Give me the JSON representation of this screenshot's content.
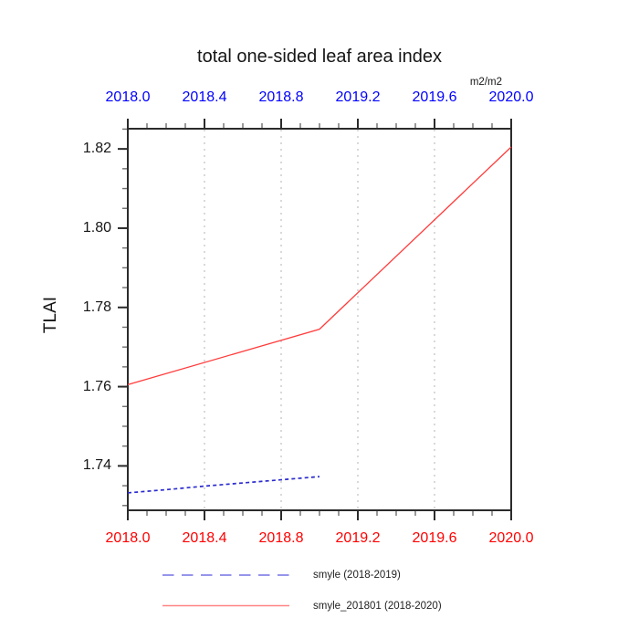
{
  "colors": {
    "top_axis_labels": "#0000ff",
    "bottom_axis_labels": "#ff0000",
    "frame": "#2b2b2b",
    "major_tick": "#2b2b2b",
    "minor_tick": "#6e6e6e",
    "gridline": "#d9d9d9",
    "title_text": "#161616"
  },
  "chart_data": {
    "type": "line",
    "title": "total one-sided leaf area index",
    "ylabel": "TLAI",
    "xlabel": "",
    "units": "m2/m2",
    "grid": "vertical-dotted",
    "legend_position": "below",
    "xlim": [
      2018.0,
      2020.0
    ],
    "ylim": [
      1.7288,
      1.8251
    ],
    "x_major_ticks": [
      2018.0,
      2018.4,
      2018.8,
      2019.2,
      2019.6,
      2020.0
    ],
    "x_tick_labels": [
      "2018.0",
      "2018.4",
      "2018.8",
      "2019.2",
      "2019.6",
      "2020.0"
    ],
    "x_minor_step": 0.1,
    "y_major_ticks": [
      1.74,
      1.76,
      1.78,
      1.8,
      1.82
    ],
    "y_tick_labels": [
      "1.74",
      "1.76",
      "1.78",
      "1.80",
      "1.82"
    ],
    "y_minor_step": 0.005,
    "gridlines_x": [
      2018.4,
      2018.8,
      2019.2,
      2019.6
    ],
    "series": [
      {
        "name": "smyle (2018-2019)",
        "style": "dashed",
        "color": "#2b2bd0",
        "x": [
          2018.0,
          2018.2,
          2018.4,
          2018.6,
          2018.8,
          2019.0
        ],
        "y": [
          1.7332,
          1.734,
          1.7349,
          1.7357,
          1.7365,
          1.7373
        ]
      },
      {
        "name": "smyle_201801 (2018-2020)",
        "style": "solid",
        "color": "#ff3b3b",
        "x": [
          2018.0,
          2019.0,
          2020.0
        ],
        "y": [
          1.7605,
          1.7745,
          1.8205
        ]
      }
    ],
    "legend": [
      {
        "label": "smyle (2018-2019)",
        "style": "dashed",
        "color": "#9595ec"
      },
      {
        "label": "smyle_201801 (2018-2020)",
        "style": "solid",
        "color": "#ff8585"
      }
    ]
  }
}
